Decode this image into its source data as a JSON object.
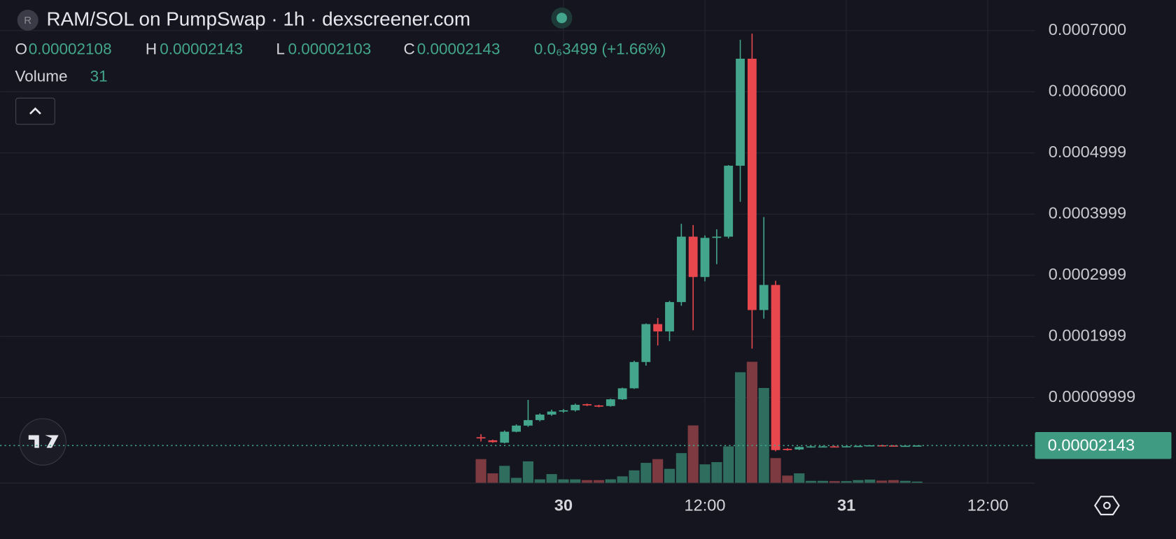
{
  "chart_data": {
    "type": "candlestick",
    "title": "RAM/SOL on PumpSwap · 1h · dexscreener.com",
    "legend_labels": {
      "open": "O",
      "high": "H",
      "low": "L",
      "close": "C"
    },
    "change": "0.0₆3499 (+1.66%)",
    "volume_label": "Volume",
    "up_color": "#43a68c",
    "down_color": "#e8474d",
    "volume_up_color": "#2f6e5f",
    "volume_down_color": "#7d3a40",
    "grid": true,
    "x": [
      -7,
      -6,
      -5,
      -4,
      -3,
      -2,
      -1,
      0,
      1,
      2,
      3,
      4,
      5,
      6,
      7,
      8,
      9,
      10,
      11,
      12,
      13,
      14,
      15,
      16,
      17,
      18,
      19,
      20,
      21,
      22,
      23,
      24,
      25,
      26,
      27,
      28,
      29,
      30
    ],
    "xlim": [
      -47.8,
      40
    ],
    "xticks": [
      {
        "value": 0,
        "label": "30"
      },
      {
        "value": 12,
        "label": "12:00"
      },
      {
        "value": 24,
        "label": "31"
      },
      {
        "value": 36,
        "label": "12:00"
      }
    ],
    "ylim": [
      -4e-05,
      0.00075
    ],
    "yticks": [
      {
        "value": 0.0007,
        "label": "0.0007000"
      },
      {
        "value": 0.0006,
        "label": "0.0006000"
      },
      0.0004999,
      0.0003999,
      0.0002999,
      0.0001999,
      9.999e-05
    ],
    "open": [
      3.5e-05,
      3e-05,
      2.6e-05,
      4.4e-05,
      5.4e-05,
      6.3e-05,
      7.2e-05,
      7.7e-05,
      7.9e-05,
      8.9e-05,
      8.7e-05,
      8.6e-05,
      9.7e-05,
      0.000115,
      0.000158,
      0.00022,
      0.000208,
      0.000256,
      0.000363,
      0.000297,
      0.000361,
      0.000363,
      0.000479,
      0.000654,
      0.000243,
      0.000284,
      1.6e-05,
      1.5e-05,
      1.9e-05,
      2e-05,
      2e-05,
      1.96e-05,
      2.02e-05,
      2.08e-05,
      2.18e-05,
      2.14e-05,
      2.05e-05,
      2.108e-05
    ],
    "high": [
      4e-05,
      3.1e-05,
      4.6e-05,
      5.6e-05,
      9.6e-05,
      7.4e-05,
      8e-05,
      8.1e-05,
      9e-05,
      9e-05,
      8.8e-05,
      9.8e-05,
      0.000116,
      0.00016,
      0.000221,
      0.00023,
      0.000258,
      0.000384,
      0.000382,
      0.000365,
      0.000375,
      0.00048,
      0.000685,
      0.000695,
      0.000395,
      0.000291,
      1.7e-05,
      2e-05,
      2.1e-05,
      2.1e-05,
      2.1e-05,
      2.05e-05,
      2.1e-05,
      2.2e-05,
      2.25e-05,
      2.2e-05,
      2.16e-05,
      2.143e-05
    ],
    "low": [
      2.8e-05,
      2.6e-05,
      2.5e-05,
      4.3e-05,
      5.2e-05,
      6.1e-05,
      7e-05,
      7.5e-05,
      7.7e-05,
      8.6e-05,
      8.4e-05,
      8.5e-05,
      9.6e-05,
      0.000114,
      0.000152,
      0.000185,
      0.000192,
      0.00025,
      0.00021,
      0.00029,
      0.000318,
      0.00036,
      0.00042,
      0.00018,
      0.000229,
      1.2e-05,
      1.3e-05,
      1.4e-05,
      1.8e-05,
      1.9e-05,
      1.9e-05,
      1.9e-05,
      1.95e-05,
      2.05e-05,
      2.1e-05,
      2e-05,
      2.02e-05,
      2.103e-05
    ],
    "close": [
      3.3e-05,
      2.7e-05,
      4.4e-05,
      5.4e-05,
      6.3e-05,
      7.2e-05,
      7.7e-05,
      7.9e-05,
      8.8e-05,
      8.7e-05,
      8.5e-05,
      9.7e-05,
      0.000115,
      0.000158,
      0.00022,
      0.000208,
      0.000256,
      0.000363,
      0.000297,
      0.000361,
      0.000363,
      0.000479,
      0.000654,
      0.000243,
      0.000284,
      1.4e-05,
      1.4e-05,
      1.9e-05,
      2e-05,
      2e-05,
      1.96e-05,
      2.02e-05,
      2.08e-05,
      2.18e-05,
      2.14e-05,
      2.05e-05,
      2.108e-05,
      2.143e-05
    ],
    "volume": [
      480,
      195,
      345,
      105,
      435,
      75,
      180,
      75,
      75,
      60,
      60,
      75,
      135,
      255,
      405,
      480,
      285,
      600,
      1155,
      375,
      420,
      735,
      2220,
      2430,
      1905,
      500,
      150,
      195,
      45,
      45,
      40,
      40,
      60,
      70,
      50,
      60,
      45,
      31
    ]
  }
}
